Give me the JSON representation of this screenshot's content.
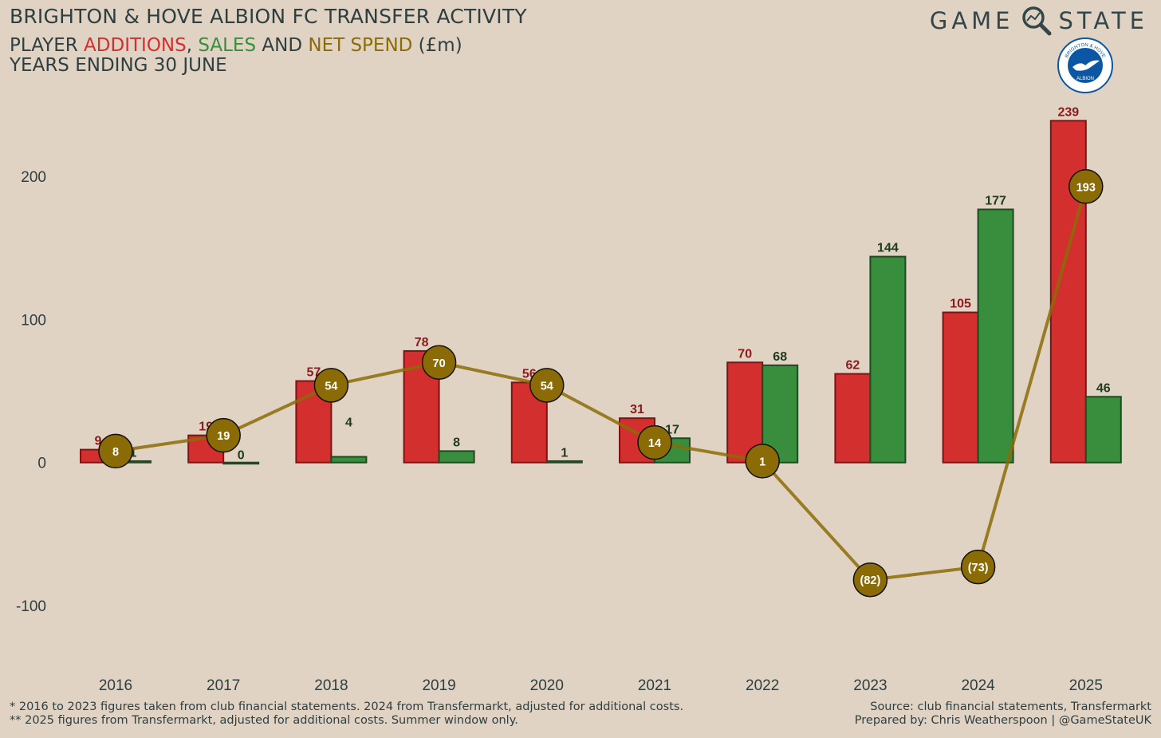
{
  "header": {
    "title": "BRIGHTON & HOVE ALBION FC TRANSFER ACTIVITY",
    "subtitle_prefix": "PLAYER ",
    "subtitle_additions": "ADDITIONS",
    "subtitle_sep1": ", ",
    "subtitle_sales": "SALES",
    "subtitle_sep2": " AND ",
    "subtitle_net": "NET SPEND",
    "subtitle_suffix": " (£m)",
    "subtitle_line2": "YEARS ENDING 30 JUNE"
  },
  "brand": {
    "left_word": "GAME",
    "right_word": "STATE",
    "icon": "magnifier-chart-icon",
    "crest": {
      "icon": "brighton-crest-icon",
      "top_text": "BRIGHTON & HOVE",
      "bottom_text": "ALBION"
    }
  },
  "colors": {
    "background": "#e0d3c4",
    "additions": "#d32f2f",
    "sales": "#388e3c",
    "net_spend": "#8b6b06",
    "additions_label": "#8b1a1a",
    "sales_label": "#1f3b1f"
  },
  "chart_data": {
    "type": "bar",
    "categories": [
      "2016",
      "2017",
      "2018",
      "2019",
      "2020",
      "2021",
      "2022",
      "2023",
      "2024",
      "2025"
    ],
    "series": [
      {
        "name": "ADDITIONS",
        "kind": "bar",
        "values": [
          9,
          19,
          57,
          78,
          56,
          31,
          70,
          62,
          105,
          239
        ],
        "labels": [
          "9",
          "19",
          "57",
          "78",
          "56",
          "31",
          "70",
          "62",
          "105",
          "239"
        ]
      },
      {
        "name": "SALES",
        "kind": "bar",
        "values": [
          1,
          0,
          4,
          8,
          1,
          17,
          68,
          144,
          177,
          46
        ],
        "labels": [
          "1",
          "0",
          "4",
          "8",
          "1",
          "17",
          "68",
          "144",
          "177",
          "46"
        ]
      },
      {
        "name": "NET SPEND",
        "kind": "line",
        "values": [
          8,
          19,
          54,
          70,
          54,
          14,
          1,
          -82,
          -73,
          193
        ],
        "labels": [
          "8",
          "19",
          "54",
          "70",
          "54",
          "14",
          "1",
          "(82)",
          "(73)",
          "193"
        ]
      }
    ],
    "y_ticks": [
      {
        "value": 200,
        "label": "200"
      },
      {
        "value": 100,
        "label": "100"
      },
      {
        "value": 0,
        "label": "0"
      },
      {
        "value": -100,
        "label": "-100"
      }
    ],
    "ylim": [
      -148,
      247
    ],
    "grid": false,
    "legend": "in subtitle"
  },
  "footer": {
    "note1": "* 2016 to 2023 figures taken from club financial statements. 2024 from Transfermarkt, adjusted for additional costs.",
    "note2": "** 2025 figures from Transfermarkt, adjusted for additional costs. Summer window only.",
    "source": "Source: club financial statements, Transfermarkt",
    "prepared": "Prepared by: Chris Weatherspoon | @GameStateUK"
  }
}
